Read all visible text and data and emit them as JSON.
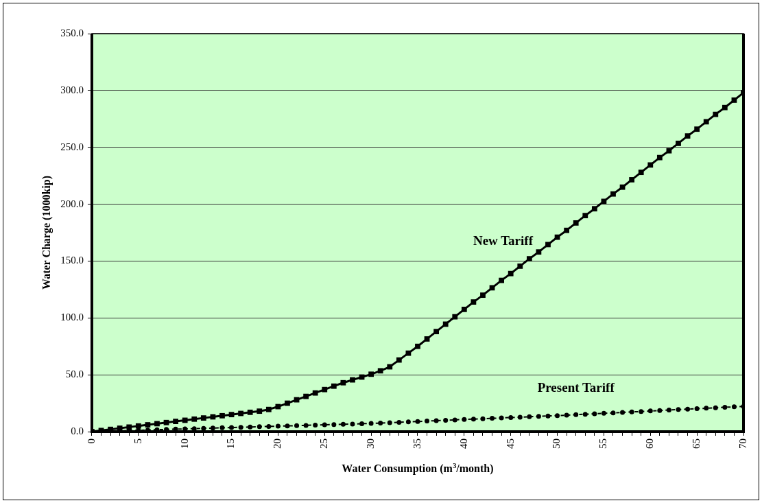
{
  "chart_data": {
    "type": "line",
    "xlabel": "Water Consumption (m$^{3}$/month)",
    "ylabel": "Water Charge (1000kip)",
    "x": [
      0,
      1,
      2,
      3,
      4,
      5,
      6,
      7,
      8,
      9,
      10,
      11,
      12,
      13,
      14,
      15,
      16,
      17,
      18,
      19,
      20,
      21,
      22,
      23,
      24,
      25,
      26,
      27,
      28,
      29,
      30,
      31,
      32,
      33,
      34,
      35,
      36,
      37,
      38,
      39,
      40,
      41,
      42,
      43,
      44,
      45,
      46,
      47,
      48,
      49,
      50,
      51,
      52,
      53,
      54,
      55,
      56,
      57,
      58,
      59,
      60,
      61,
      62,
      63,
      64,
      65,
      66,
      67,
      68,
      69,
      70
    ],
    "series": [
      {
        "name": "New Tariff",
        "color": "#000000",
        "marker": "square",
        "line_style": "solid",
        "values": [
          0,
          1,
          2,
          3,
          4,
          5,
          6,
          7,
          8,
          9,
          10,
          11,
          12,
          13,
          14,
          15,
          16,
          17,
          18,
          19.5,
          22,
          25,
          28,
          31,
          34,
          37,
          40,
          43,
          45.5,
          48,
          50.5,
          53.5,
          57,
          63,
          69,
          75,
          81.5,
          88,
          94.5,
          101,
          107.5,
          114,
          120,
          126.5,
          133,
          139,
          145.5,
          152,
          158,
          164.5,
          171,
          177,
          183.5,
          190,
          196,
          202.5,
          209,
          215,
          221.5,
          228,
          234.5,
          241,
          247,
          253.5,
          260,
          266,
          272.5,
          279,
          285,
          291.5,
          298
        ]
      },
      {
        "name": "Present Tariff",
        "color": "#000000",
        "marker": "circle",
        "line_style": "dashed",
        "values": [
          0,
          0.2,
          0.5,
          0.7,
          1.0,
          1.2,
          1.4,
          1.7,
          1.9,
          2.2,
          2.4,
          2.6,
          2.9,
          3.1,
          3.4,
          3.6,
          3.8,
          4.1,
          4.3,
          4.6,
          4.8,
          5.0,
          5.3,
          5.5,
          5.8,
          6.0,
          6.2,
          6.5,
          6.7,
          7.0,
          7.2,
          7.5,
          7.9,
          8.2,
          8.6,
          8.9,
          9.3,
          9.6,
          10.0,
          10.3,
          10.7,
          11.0,
          11.3,
          11.7,
          12.0,
          12.4,
          12.7,
          13.1,
          13.4,
          13.8,
          14.1,
          14.5,
          14.9,
          15.3,
          15.7,
          16.1,
          16.5,
          16.9,
          17.3,
          17.7,
          18.2,
          18.6,
          19.0,
          19.4,
          19.8,
          20.2,
          20.6,
          21.0,
          21.4,
          21.8,
          22.2
        ]
      }
    ],
    "xlim": [
      0,
      70
    ],
    "xticks": [
      0,
      {
        "value": 1,
        "label": null
      },
      {
        "value": 2,
        "label": null
      },
      {
        "value": 3,
        "label": null
      },
      {
        "value": 4,
        "label": null
      },
      5,
      {
        "value": 6,
        "label": null
      },
      {
        "value": 7,
        "label": null
      },
      {
        "value": 8,
        "label": null
      },
      {
        "value": 9,
        "label": null
      },
      10,
      {
        "value": 11,
        "label": null
      },
      {
        "value": 12,
        "label": null
      },
      {
        "value": 13,
        "label": null
      },
      {
        "value": 14,
        "label": null
      },
      15,
      {
        "value": 16,
        "label": null
      },
      {
        "value": 17,
        "label": null
      },
      {
        "value": 18,
        "label": null
      },
      {
        "value": 19,
        "label": null
      },
      20,
      {
        "value": 21,
        "label": null
      },
      {
        "value": 22,
        "label": null
      },
      {
        "value": 23,
        "label": null
      },
      {
        "value": 24,
        "label": null
      },
      25,
      {
        "value": 26,
        "label": null
      },
      {
        "value": 27,
        "label": null
      },
      {
        "value": 28,
        "label": null
      },
      {
        "value": 29,
        "label": null
      },
      30,
      {
        "value": 31,
        "label": null
      },
      {
        "value": 32,
        "label": null
      },
      {
        "value": 33,
        "label": null
      },
      {
        "value": 34,
        "label": null
      },
      35,
      {
        "value": 36,
        "label": null
      },
      {
        "value": 37,
        "label": null
      },
      {
        "value": 38,
        "label": null
      },
      {
        "value": 39,
        "label": null
      },
      40,
      {
        "value": 41,
        "label": null
      },
      {
        "value": 42,
        "label": null
      },
      {
        "value": 43,
        "label": null
      },
      {
        "value": 44,
        "label": null
      },
      45,
      {
        "value": 46,
        "label": null
      },
      {
        "value": 47,
        "label": null
      },
      {
        "value": 48,
        "label": null
      },
      {
        "value": 49,
        "label": null
      },
      50,
      {
        "value": 51,
        "label": null
      },
      {
        "value": 52,
        "label": null
      },
      {
        "value": 53,
        "label": null
      },
      {
        "value": 54,
        "label": null
      },
      55,
      {
        "value": 56,
        "label": null
      },
      {
        "value": 57,
        "label": null
      },
      {
        "value": 58,
        "label": null
      },
      {
        "value": 59,
        "label": null
      },
      60,
      {
        "value": 61,
        "label": null
      },
      {
        "value": 62,
        "label": null
      },
      {
        "value": 63,
        "label": null
      },
      {
        "value": 64,
        "label": null
      },
      65,
      {
        "value": 66,
        "label": null
      },
      {
        "value": 67,
        "label": null
      },
      {
        "value": 68,
        "label": null
      },
      {
        "value": 69,
        "label": null
      },
      70
    ],
    "ylim": [
      0,
      350
    ],
    "yticks": [
      {
        "value": 0,
        "label": "0.0"
      },
      {
        "value": 50,
        "label": "50.0"
      },
      {
        "value": 100,
        "label": "100.0"
      },
      {
        "value": 150,
        "label": "150.0"
      },
      {
        "value": 200,
        "label": "200.0"
      },
      {
        "value": 250,
        "label": "250.0"
      },
      {
        "value": 300,
        "label": "300.0"
      },
      {
        "value": 350,
        "label": "350.0"
      }
    ],
    "grid": "y",
    "legend": false
  }
}
